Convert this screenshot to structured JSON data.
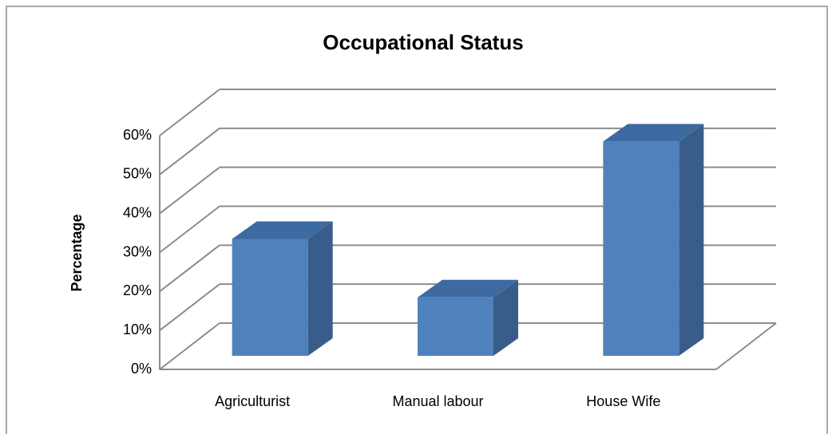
{
  "chart_data": {
    "type": "bar",
    "title": "Occupational Status",
    "y_label": "Percentage",
    "categories": [
      "Agriculturist",
      "Manual labour",
      "House Wife"
    ],
    "values": [
      30,
      15,
      55
    ],
    "color": "#4f81bd",
    "ylim": [
      0,
      60
    ],
    "yticks": [
      {
        "value": 0,
        "label": "0%"
      },
      {
        "value": 10,
        "label": "10%"
      },
      {
        "value": 20,
        "label": "20%"
      },
      {
        "value": 30,
        "label": "30%"
      },
      {
        "value": 40,
        "label": "40%"
      },
      {
        "value": 50,
        "label": "50%"
      },
      {
        "value": 60,
        "label": "60%"
      }
    ],
    "grid": true
  }
}
